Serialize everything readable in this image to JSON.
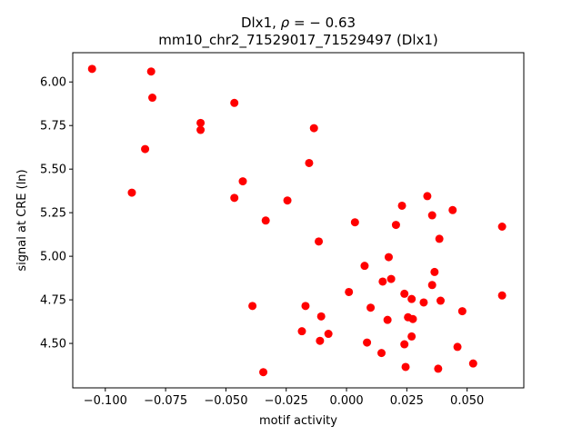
{
  "chart_data": {
    "type": "scatter",
    "title_line1_prefix": "Dlx1, ",
    "title_line1_rho": "ρ",
    "title_line1_suffix": " = − 0.63",
    "title_line2": "mm10_chr2_71529017_71529497 (Dlx1)",
    "xlabel": "motif activity",
    "ylabel": "signal at CRE (ln)",
    "xlim": [
      -0.1135,
      0.0735
    ],
    "ylim": [
      4.245,
      6.168
    ],
    "xticks": [
      -0.1,
      -0.075,
      -0.05,
      -0.025,
      0.0,
      0.025,
      0.05
    ],
    "xtick_labels": [
      "−0.100",
      "−0.075",
      "−0.050",
      "−0.025",
      "0.000",
      "0.025",
      "0.050"
    ],
    "yticks": [
      4.5,
      4.75,
      5.0,
      5.25,
      5.5,
      5.75,
      6.0
    ],
    "ytick_labels": [
      "4.50",
      "4.75",
      "5.00",
      "5.25",
      "5.50",
      "5.75",
      "6.00"
    ],
    "grid": false,
    "marker_color": "#ff0000",
    "points": [
      {
        "x": -0.1055,
        "y": 6.075
      },
      {
        "x": -0.081,
        "y": 6.06
      },
      {
        "x": -0.0805,
        "y": 5.91
      },
      {
        "x": -0.0465,
        "y": 5.88
      },
      {
        "x": -0.0605,
        "y": 5.765
      },
      {
        "x": -0.0605,
        "y": 5.725
      },
      {
        "x": -0.0135,
        "y": 5.735
      },
      {
        "x": -0.0835,
        "y": 5.615
      },
      {
        "x": -0.0155,
        "y": 5.535
      },
      {
        "x": -0.089,
        "y": 5.365
      },
      {
        "x": -0.043,
        "y": 5.43
      },
      {
        "x": -0.0465,
        "y": 5.335
      },
      {
        "x": -0.0245,
        "y": 5.32
      },
      {
        "x": -0.0335,
        "y": 5.205
      },
      {
        "x": -0.0115,
        "y": 5.085
      },
      {
        "x": 0.0035,
        "y": 5.195
      },
      {
        "x": 0.0205,
        "y": 5.18
      },
      {
        "x": 0.023,
        "y": 5.29
      },
      {
        "x": 0.0335,
        "y": 5.345
      },
      {
        "x": 0.0355,
        "y": 5.235
      },
      {
        "x": 0.044,
        "y": 5.265
      },
      {
        "x": 0.0385,
        "y": 5.1
      },
      {
        "x": 0.0645,
        "y": 5.17
      },
      {
        "x": 0.0175,
        "y": 4.995
      },
      {
        "x": 0.0075,
        "y": 4.945
      },
      {
        "x": 0.0365,
        "y": 4.91
      },
      {
        "x": 0.015,
        "y": 4.855
      },
      {
        "x": 0.0185,
        "y": 4.87
      },
      {
        "x": 0.0355,
        "y": 4.835
      },
      {
        "x": 0.001,
        "y": 4.795
      },
      {
        "x": 0.024,
        "y": 4.785
      },
      {
        "x": 0.027,
        "y": 4.755
      },
      {
        "x": 0.032,
        "y": 4.735
      },
      {
        "x": 0.039,
        "y": 4.745
      },
      {
        "x": 0.0645,
        "y": 4.775
      },
      {
        "x": -0.039,
        "y": 4.715
      },
      {
        "x": -0.017,
        "y": 4.715
      },
      {
        "x": 0.01,
        "y": 4.705
      },
      {
        "x": 0.048,
        "y": 4.685
      },
      {
        "x": -0.0105,
        "y": 4.655
      },
      {
        "x": 0.017,
        "y": 4.635
      },
      {
        "x": 0.0255,
        "y": 4.65
      },
      {
        "x": 0.0275,
        "y": 4.64
      },
      {
        "x": -0.0185,
        "y": 4.57
      },
      {
        "x": -0.0075,
        "y": 4.555
      },
      {
        "x": -0.011,
        "y": 4.515
      },
      {
        "x": 0.0085,
        "y": 4.505
      },
      {
        "x": 0.027,
        "y": 4.54
      },
      {
        "x": 0.024,
        "y": 4.495
      },
      {
        "x": 0.046,
        "y": 4.48
      },
      {
        "x": 0.0145,
        "y": 4.445
      },
      {
        "x": 0.0525,
        "y": 4.385
      },
      {
        "x": 0.0245,
        "y": 4.365
      },
      {
        "x": 0.038,
        "y": 4.355
      },
      {
        "x": -0.0345,
        "y": 4.335
      }
    ]
  }
}
